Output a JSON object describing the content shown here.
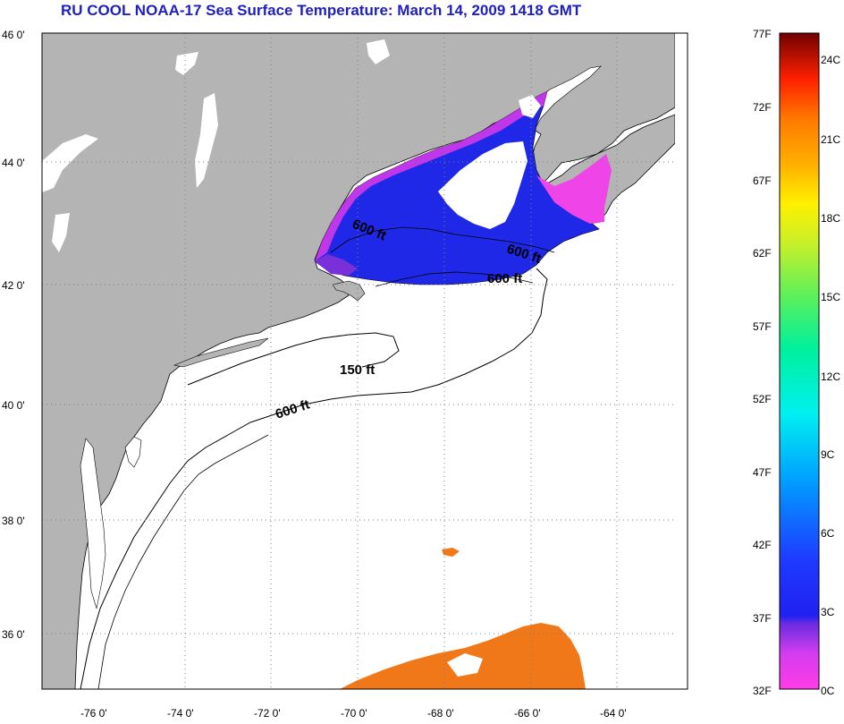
{
  "title": "RU COOL  NOAA-17  Sea Surface Temperature:  March 14, 2009 1418 GMT",
  "lat_labels": [
    "46 0'",
    "44 0'",
    "42 0'",
    "40 0'",
    "38 0'",
    "36 0'"
  ],
  "lon_labels": [
    "-76 0'",
    "-74 0'",
    "-72 0'",
    "-70 0'",
    "-68 0'",
    "-66 0'",
    "-64 0'"
  ],
  "colorbar": {
    "fahrenheit": [
      "77F",
      "72F",
      "67F",
      "62F",
      "57F",
      "52F",
      "47F",
      "42F",
      "37F",
      "32F"
    ],
    "celsius": [
      "24C",
      "21C",
      "18C",
      "15C",
      "12C",
      "9C",
      "6C",
      "3C",
      "0C"
    ]
  },
  "contours": {
    "label_150": "150 ft",
    "label_600": "600 ft"
  },
  "colors": {
    "land": "#b4b4b4",
    "cold_water": "#1f28e6",
    "coastal_magenta": "#e040e8",
    "warm_water": "#f07818",
    "title": "#1f1fbf"
  }
}
